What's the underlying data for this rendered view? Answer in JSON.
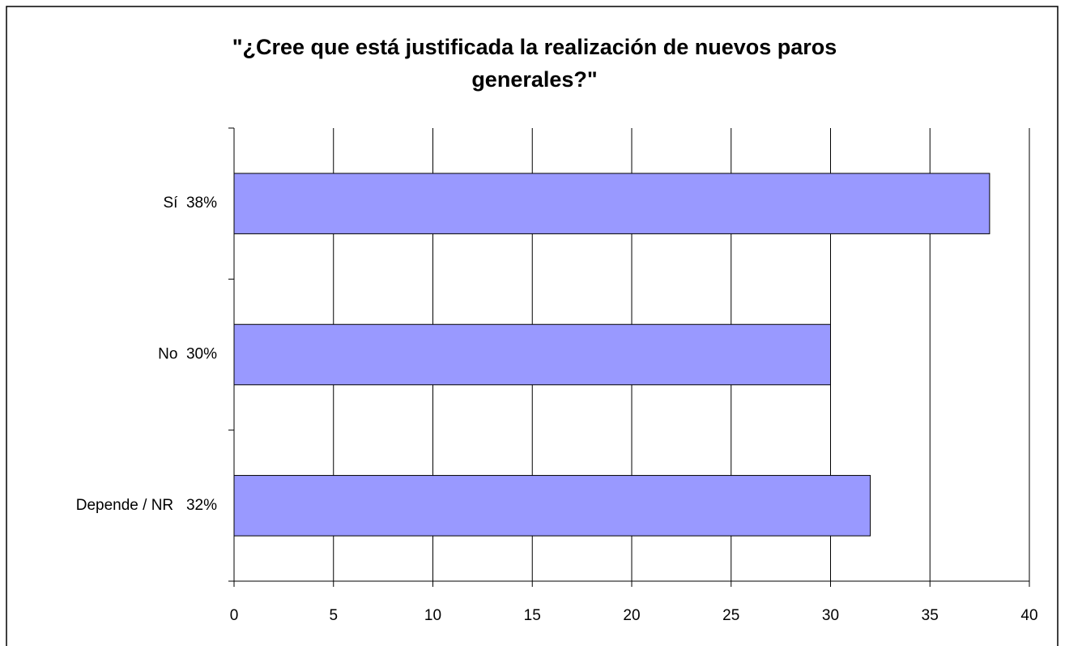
{
  "chart_data": {
    "type": "bar",
    "orientation": "horizontal",
    "title": "\"¿Cree que está justificada la realización de nuevos paros generales?\"",
    "categories": [
      "Sí  38%",
      "No  30%",
      "Depende / NR   32%"
    ],
    "values": [
      38,
      30,
      32
    ],
    "color": "#9999ff",
    "xlim": [
      0,
      40
    ],
    "xticks": [
      0,
      5,
      10,
      15,
      20,
      25,
      30,
      35,
      40
    ],
    "grid": true
  }
}
